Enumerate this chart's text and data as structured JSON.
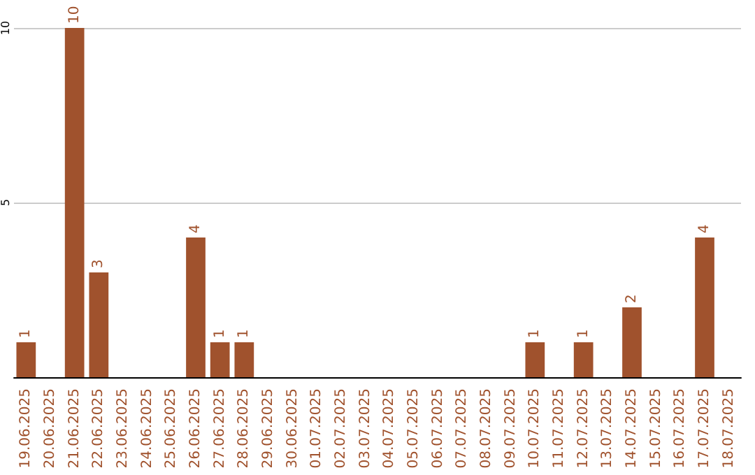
{
  "chart_data": {
    "type": "bar",
    "categories": [
      "19.06.2025",
      "20.06.2025",
      "21.06.2025",
      "22.06.2025",
      "23.06.2025",
      "24.06.2025",
      "25.06.2025",
      "26.06.2025",
      "27.06.2025",
      "28.06.2025",
      "29.06.2025",
      "30.06.2025",
      "01.07.2025",
      "02.07.2025",
      "03.07.2025",
      "04.07.2025",
      "05.07.2025",
      "06.07.2025",
      "07.07.2025",
      "08.07.2025",
      "09.07.2025",
      "10.07.2025",
      "11.07.2025",
      "12.07.2025",
      "13.07.2025",
      "14.07.2025",
      "15.07.2025",
      "16.07.2025",
      "17.07.2025",
      "18.07.2025"
    ],
    "values": [
      1,
      0,
      10,
      3,
      0,
      0,
      0,
      4,
      1,
      1,
      0,
      0,
      0,
      0,
      0,
      0,
      0,
      0,
      0,
      0,
      0,
      1,
      0,
      1,
      0,
      2,
      0,
      0,
      4,
      0
    ],
    "value_labels": [
      "1",
      null,
      "10",
      "3",
      null,
      null,
      null,
      "4",
      "1",
      "1",
      null,
      null,
      null,
      null,
      null,
      null,
      null,
      null,
      null,
      null,
      null,
      "1",
      null,
      "1",
      null,
      "2",
      null,
      null,
      "4",
      null
    ],
    "color": "#a0522d",
    "ylim": [
      0,
      10
    ],
    "yticks": [
      5,
      10
    ],
    "grid": "y"
  }
}
